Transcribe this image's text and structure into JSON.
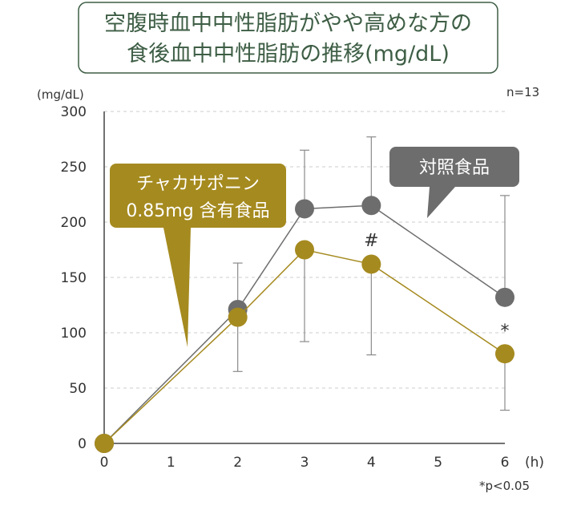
{
  "title_lines": [
    "空腹時血中中性脂肪がやや高めな方の",
    "食後血中中性脂肪の推移(mg/dL)"
  ],
  "n_label": "n=13",
  "footnote": "*p<0.05",
  "colors": {
    "title_text": "#3e5e45",
    "title_border": "#3e5e45",
    "control": "#6d6d6d",
    "test": "#a58a1f",
    "grid": "#cccccc",
    "axis": "#444444",
    "errorbar": "#8a8a8a"
  },
  "chart_data": {
    "type": "line",
    "x": [
      0,
      2,
      3,
      4,
      6
    ],
    "xticks": [
      "0",
      "1",
      "2",
      "3",
      "4",
      "5",
      "6"
    ],
    "xlabel": "(h)",
    "ylabel": "(mg/dL)",
    "yticks": [
      "0",
      "50",
      "100",
      "150",
      "200",
      "250",
      "300"
    ],
    "xlim": [
      0,
      6
    ],
    "ylim": [
      0,
      300
    ],
    "grid": true,
    "series": [
      {
        "name": "対照食品",
        "color": "#6d6d6d",
        "values": [
          0,
          121,
          212,
          215,
          132
        ],
        "err_high": [
          null,
          163,
          265,
          277,
          224
        ],
        "err_low": [
          null,
          null,
          null,
          null,
          null
        ]
      },
      {
        "name": "チャカサポニン0.85mg含有食品",
        "name_lines": [
          "チャカサポニン",
          "0.85mg 含有食品"
        ],
        "color": "#a58a1f",
        "values": [
          0,
          114,
          175,
          162,
          81
        ],
        "err_high": [
          null,
          null,
          null,
          null,
          null
        ],
        "err_low": [
          null,
          65,
          92,
          80,
          30
        ]
      }
    ],
    "annotations": [
      {
        "x": 4,
        "y": 184,
        "text": "#"
      },
      {
        "x": 6,
        "y": 102,
        "text": "*"
      }
    ]
  }
}
